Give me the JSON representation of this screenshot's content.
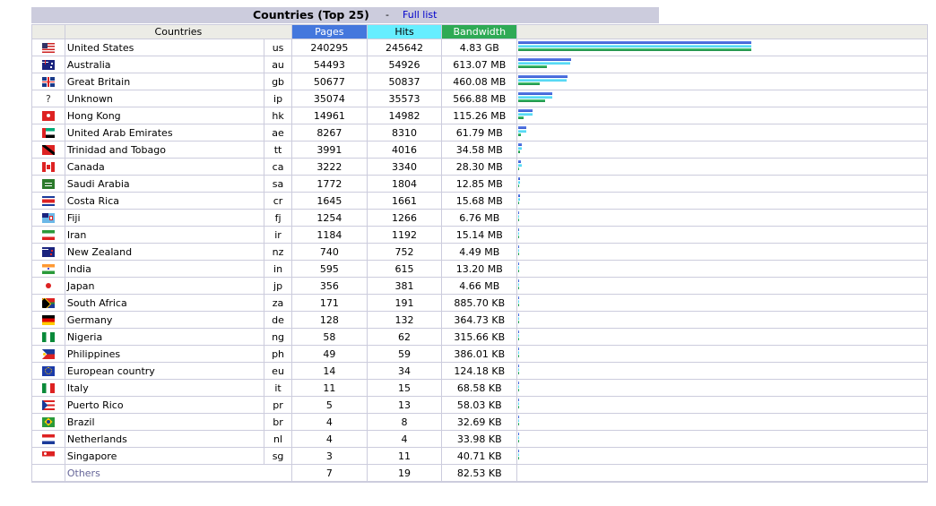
{
  "header": {
    "title": "Countries (Top 25)",
    "separator": "-",
    "full_list_link": "Full list"
  },
  "columns": {
    "countries": "Countries",
    "pages": "Pages",
    "hits": "Hits",
    "bandwidth": "Bandwidth"
  },
  "colors": {
    "pages": "#4477dd",
    "hits": "#66eeff",
    "bandwidth": "#2eaa55",
    "title_bg": "#ccccdd"
  },
  "rows": [
    {
      "flag_icon": "us-flag-icon",
      "name": "United States",
      "code": "us",
      "pages": 240295,
      "hits": 245642,
      "bandwidth": "4.83 GB",
      "bw_mb": 4946
    },
    {
      "flag_icon": "au-flag-icon",
      "name": "Australia",
      "code": "au",
      "pages": 54493,
      "hits": 54926,
      "bandwidth": "613.07 MB",
      "bw_mb": 613.07
    },
    {
      "flag_icon": "gb-flag-icon",
      "name": "Great Britain",
      "code": "gb",
      "pages": 50677,
      "hits": 50837,
      "bandwidth": "460.08 MB",
      "bw_mb": 460.08
    },
    {
      "flag_icon": "unknown-flag-icon",
      "name": "Unknown",
      "code": "ip",
      "pages": 35074,
      "hits": 35573,
      "bandwidth": "566.88 MB",
      "bw_mb": 566.88
    },
    {
      "flag_icon": "hk-flag-icon",
      "name": "Hong Kong",
      "code": "hk",
      "pages": 14961,
      "hits": 14982,
      "bandwidth": "115.26 MB",
      "bw_mb": 115.26
    },
    {
      "flag_icon": "ae-flag-icon",
      "name": "United Arab Emirates",
      "code": "ae",
      "pages": 8267,
      "hits": 8310,
      "bandwidth": "61.79 MB",
      "bw_mb": 61.79
    },
    {
      "flag_icon": "tt-flag-icon",
      "name": "Trinidad and Tobago",
      "code": "tt",
      "pages": 3991,
      "hits": 4016,
      "bandwidth": "34.58 MB",
      "bw_mb": 34.58
    },
    {
      "flag_icon": "ca-flag-icon",
      "name": "Canada",
      "code": "ca",
      "pages": 3222,
      "hits": 3340,
      "bandwidth": "28.30 MB",
      "bw_mb": 28.3
    },
    {
      "flag_icon": "sa-flag-icon",
      "name": "Saudi Arabia",
      "code": "sa",
      "pages": 1772,
      "hits": 1804,
      "bandwidth": "12.85 MB",
      "bw_mb": 12.85
    },
    {
      "flag_icon": "cr-flag-icon",
      "name": "Costa Rica",
      "code": "cr",
      "pages": 1645,
      "hits": 1661,
      "bandwidth": "15.68 MB",
      "bw_mb": 15.68
    },
    {
      "flag_icon": "fj-flag-icon",
      "name": "Fiji",
      "code": "fj",
      "pages": 1254,
      "hits": 1266,
      "bandwidth": "6.76 MB",
      "bw_mb": 6.76
    },
    {
      "flag_icon": "ir-flag-icon",
      "name": "Iran",
      "code": "ir",
      "pages": 1184,
      "hits": 1192,
      "bandwidth": "15.14 MB",
      "bw_mb": 15.14
    },
    {
      "flag_icon": "nz-flag-icon",
      "name": "New Zealand",
      "code": "nz",
      "pages": 740,
      "hits": 752,
      "bandwidth": "4.49 MB",
      "bw_mb": 4.49
    },
    {
      "flag_icon": "in-flag-icon",
      "name": "India",
      "code": "in",
      "pages": 595,
      "hits": 615,
      "bandwidth": "13.20 MB",
      "bw_mb": 13.2
    },
    {
      "flag_icon": "jp-flag-icon",
      "name": "Japan",
      "code": "jp",
      "pages": 356,
      "hits": 381,
      "bandwidth": "4.66 MB",
      "bw_mb": 4.66
    },
    {
      "flag_icon": "za-flag-icon",
      "name": "South Africa",
      "code": "za",
      "pages": 171,
      "hits": 191,
      "bandwidth": "885.70 KB",
      "bw_mb": 0.865
    },
    {
      "flag_icon": "de-flag-icon",
      "name": "Germany",
      "code": "de",
      "pages": 128,
      "hits": 132,
      "bandwidth": "364.73 KB",
      "bw_mb": 0.356
    },
    {
      "flag_icon": "ng-flag-icon",
      "name": "Nigeria",
      "code": "ng",
      "pages": 58,
      "hits": 62,
      "bandwidth": "315.66 KB",
      "bw_mb": 0.308
    },
    {
      "flag_icon": "ph-flag-icon",
      "name": "Philippines",
      "code": "ph",
      "pages": 49,
      "hits": 59,
      "bandwidth": "386.01 KB",
      "bw_mb": 0.377
    },
    {
      "flag_icon": "eu-flag-icon",
      "name": "European country",
      "code": "eu",
      "pages": 14,
      "hits": 34,
      "bandwidth": "124.18 KB",
      "bw_mb": 0.121
    },
    {
      "flag_icon": "it-flag-icon",
      "name": "Italy",
      "code": "it",
      "pages": 11,
      "hits": 15,
      "bandwidth": "68.58 KB",
      "bw_mb": 0.067
    },
    {
      "flag_icon": "pr-flag-icon",
      "name": "Puerto Rico",
      "code": "pr",
      "pages": 5,
      "hits": 13,
      "bandwidth": "58.03 KB",
      "bw_mb": 0.057
    },
    {
      "flag_icon": "br-flag-icon",
      "name": "Brazil",
      "code": "br",
      "pages": 4,
      "hits": 8,
      "bandwidth": "32.69 KB",
      "bw_mb": 0.032
    },
    {
      "flag_icon": "nl-flag-icon",
      "name": "Netherlands",
      "code": "nl",
      "pages": 4,
      "hits": 4,
      "bandwidth": "33.98 KB",
      "bw_mb": 0.033
    },
    {
      "flag_icon": "sg-flag-icon",
      "name": "Singapore",
      "code": "sg",
      "pages": 3,
      "hits": 11,
      "bandwidth": "40.71 KB",
      "bw_mb": 0.04
    }
  ],
  "others": {
    "name": "Others",
    "pages": 7,
    "hits": 19,
    "bandwidth": "82.53 KB"
  }
}
